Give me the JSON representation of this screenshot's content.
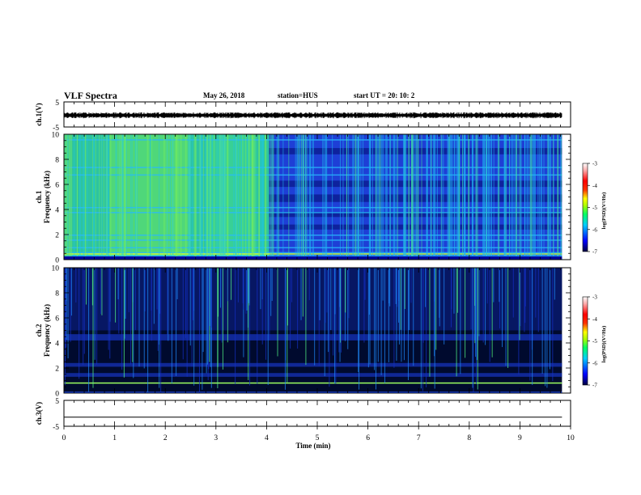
{
  "header": {
    "title": "VLF Spectra",
    "date": "May 26, 2018",
    "station": "station=HUS",
    "start_time": "start  UT =   20: 10: 2"
  },
  "colors": {
    "ch1_spectrogram_dominant": "#33dd88",
    "ch2_spectrogram_dominant": "#000a2e",
    "colorbar_stops": [
      "#000040",
      "#0000ff",
      "#00ccff",
      "#00ff66",
      "#aaff00",
      "#ffff00",
      "#ff3300",
      "#ff0000",
      "#ffaaaa",
      "#ffffff"
    ]
  },
  "chart_data": [
    {
      "type": "line",
      "panel": "ch1-waveform",
      "ylabel": "ch.1(V)",
      "ylim": [
        -5,
        5
      ],
      "y_ticks": [
        "5",
        "-5"
      ],
      "xlim": [
        0,
        10
      ],
      "note_level": 0
    },
    {
      "type": "heatmap",
      "panel": "ch1-spectrogram",
      "ylabel_channel": "ch.1",
      "ylabel": "Frequency  (kHz)",
      "ylim": [
        0,
        10
      ],
      "y_ticks": [
        "0",
        "2",
        "4",
        "6",
        "8",
        "10"
      ],
      "xlim": [
        0,
        10
      ],
      "colorbar": {
        "label": "log(PSD)(V²/Hz)",
        "ticks": [
          "-3",
          "-4",
          "-5",
          "-6",
          "-7"
        ],
        "range": [
          -7,
          -3
        ]
      }
    },
    {
      "type": "heatmap",
      "panel": "ch2-spectrogram",
      "ylabel_channel": "ch.2",
      "ylabel": "Frequency  (kHz)",
      "ylim": [
        0,
        10
      ],
      "y_ticks": [
        "0",
        "2",
        "4",
        "6",
        "8",
        "10"
      ],
      "xlim": [
        0,
        10
      ],
      "colorbar": {
        "label": "log(PSD)(V²/Hz)",
        "ticks": [
          "-3",
          "-4",
          "-5",
          "-6",
          "-7"
        ],
        "range": [
          -7,
          -3
        ]
      }
    },
    {
      "type": "line",
      "panel": "ch3-waveform",
      "ylabel": "ch.3(V)",
      "ylim": [
        -5,
        5
      ],
      "y_ticks": [
        "5",
        "-5"
      ],
      "xlim": [
        0,
        10
      ],
      "level": -1.5
    }
  ],
  "x_axis": {
    "label": "Time  (min)",
    "ticks": [
      "0",
      "1",
      "2",
      "3",
      "4",
      "5",
      "6",
      "7",
      "8",
      "9",
      "10"
    ]
  }
}
